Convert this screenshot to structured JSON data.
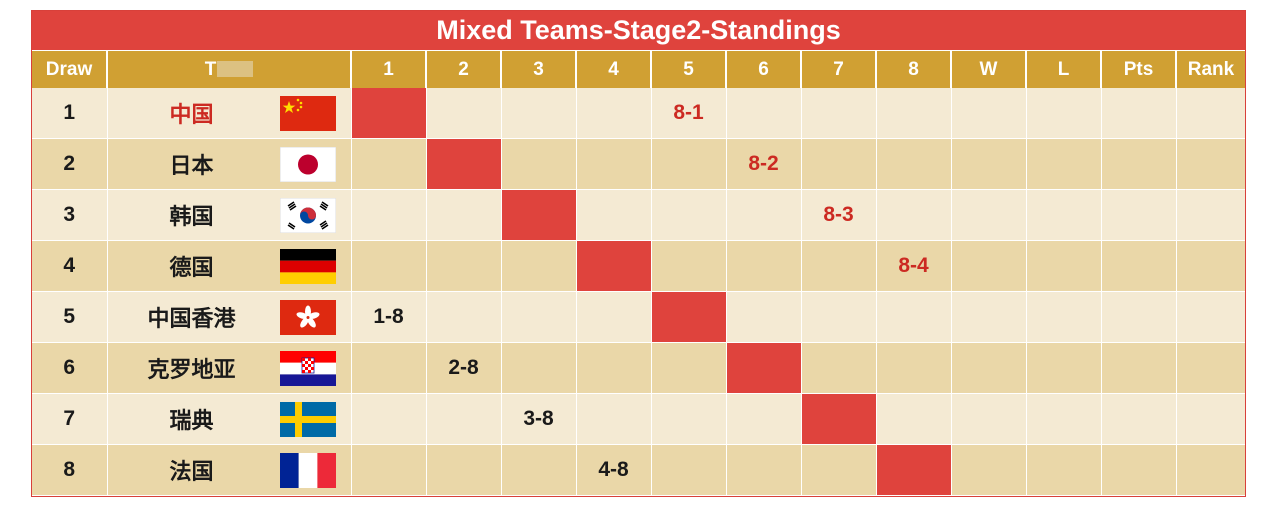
{
  "title": "Mixed Teams-Stage2-Standings",
  "headers": {
    "draw": "Draw",
    "team": "T",
    "c1": "1",
    "c2": "2",
    "c3": "3",
    "c4": "4",
    "c5": "5",
    "c6": "6",
    "c7": "7",
    "c8": "8",
    "w": "W",
    "l": "L",
    "pts": "Pts",
    "rank": "Rank"
  },
  "rows": [
    {
      "draw": "1",
      "team": "中国",
      "flag": "china-flag-icon",
      "score": "8-1"
    },
    {
      "draw": "2",
      "team": "日本",
      "flag": "japan-flag-icon",
      "score": "8-2"
    },
    {
      "draw": "3",
      "team": "韩国",
      "flag": "korea-flag-icon",
      "score": "8-3"
    },
    {
      "draw": "4",
      "team": "德国",
      "flag": "germany-flag-icon",
      "score": "8-4"
    },
    {
      "draw": "5",
      "team": "中国香港",
      "flag": "hongkong-flag-icon",
      "score": "1-8"
    },
    {
      "draw": "6",
      "team": "克罗地亚",
      "flag": "croatia-flag-icon",
      "score": "2-8"
    },
    {
      "draw": "7",
      "team": "瑞典",
      "flag": "sweden-flag-icon",
      "score": "3-8"
    },
    {
      "draw": "8",
      "team": "法国",
      "flag": "france-flag-icon",
      "score": "4-8"
    }
  ],
  "colors": {
    "accent_red": "#df433d",
    "header_gold": "#d0a033",
    "score_red": "#cc2a22"
  }
}
